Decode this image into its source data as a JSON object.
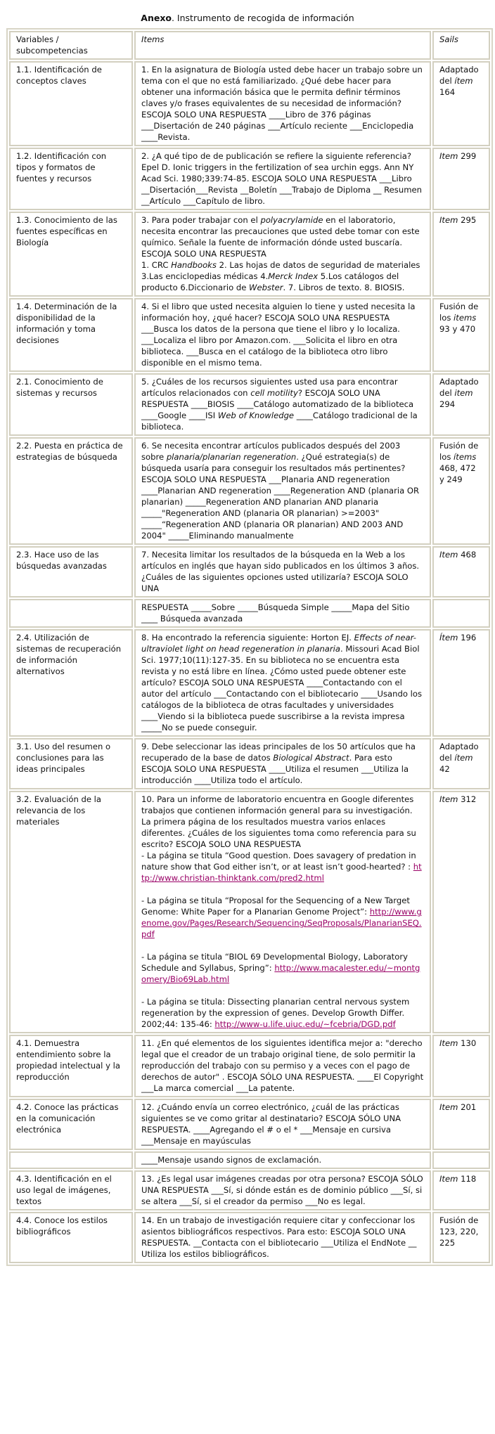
{
  "title": {
    "bold": "Anexo",
    "rest": ". Instrumento de recogida de información"
  },
  "header": {
    "variables": "Variables / subcompetencias",
    "items": "Items",
    "source": "Sails"
  },
  "link_color": "#990066",
  "rows": [
    {
      "variable": "1.1. Identificación de conceptos claves",
      "item": [
        {
          "t": "1. En la asignatura de Biología usted debe hacer un trabajo sobre un tema con el que no está familiarizado. ¿Qué debe hacer para obtener una información básica que le permita definir términos claves y/o frases equivalentes de su necesidad de información? ESCOJA SOLO UNA RESPUESTA ____Libro de 376 páginas ___Disertación de 240 páginas  ___Artículo reciente ___Enciclopedia ____Revista."
        }
      ],
      "source": [
        {
          "t": "Adaptado del "
        },
        {
          "i": "ítem"
        },
        {
          "t": " 164"
        }
      ]
    },
    {
      "variable": "1.2.  Identificación con tipos y formatos de fuentes y recursos",
      "item": [
        {
          "t": "2.  ¿A qué tipo de de publicación se refiere la siguiente referencia? Epel D. Ionic triggers in the fertilization of sea urchin eggs. Ann NY Acad Sci. 1980;339:74-85. ESCOJA SOLO UNA RESPUESTA ___Libro __Disertación___Revista __Boletín ___Trabajo de Diploma  __ Resumen  __Artículo ___Capítulo de libro."
        }
      ],
      "source": [
        {
          "i": "Item"
        },
        {
          "t": " 299"
        }
      ]
    },
    {
      "variable": "1.3.  Conocimiento de las fuentes específicas en Biología",
      "item": [
        {
          "t": "3. Para poder trabajar con el "
        },
        {
          "i": "polyacrylamide"
        },
        {
          "t": "  en el laboratorio,  necesita encontrar las precauciones que usted debe tomar con este químico. Señale la fuente de información dónde usted buscaría. ESCOJA SOLO UNA RESPUESTA"
        },
        {
          "br": 1
        },
        {
          "t": "1. CRC  "
        },
        {
          "i": "Handbooks"
        },
        {
          "t": "  2. Las hojas de datos de seguridad de materiales 3.Las enciclopedias médicas 4."
        },
        {
          "i": "Merck Index"
        },
        {
          "t": "  5.Los catálogos del producto 6.Diccionario de "
        },
        {
          "i": "Webster"
        },
        {
          "t": ". 7. Libros de texto. 8. BIOSIS."
        }
      ],
      "source": [
        {
          "i": "Item"
        },
        {
          "t": " 295"
        }
      ]
    },
    {
      "variable": "1.4.  Determinación de la disponibilidad de la información y toma decisiones",
      "item": [
        {
          "t": "4. Si el libro que usted necesita alguien lo tiene y usted necesita la información hoy, ¿qué hacer?  ESCOJA SOLO UNA RESPUESTA ___Busca los datos de la persona que tiene el libro y lo localiza. ___Localiza el libro por Amazon.com.   ___Solicita el libro en otra biblioteca. ___Busca en el catálogo de la biblioteca otro libro disponible en el mismo tema."
        }
      ],
      "source": [
        {
          "t": "Fusión de los "
        },
        {
          "i": "items"
        },
        {
          "t": " 93 y 470"
        }
      ]
    },
    {
      "variable": "2.1.  Conocimiento de sistemas y recursos",
      "item": [
        {
          "t": "5. ¿Cuáles de los recursos siguientes usted usa para encontrar artículos relacionados con "
        },
        {
          "i": "cell motility"
        },
        {
          "t": "? ESCOJA SOLO UNA RESPUESTA ____BIOSIS ____Catálogo automatizado de la biblioteca ____Google ____ISI "
        },
        {
          "i": "Web of Knowledge"
        },
        {
          "t": " ____Catálogo tradicional de la biblioteca."
        }
      ],
      "source": [
        {
          "t": "Adaptado del "
        },
        {
          "i": "item"
        },
        {
          "t": " 294"
        }
      ]
    },
    {
      "variable": "2.2.  Puesta en práctica de estrategias de búsqueda",
      "item": [
        {
          "t": "6. Se necesita encontrar artículos publicados después del 2003 sobre "
        },
        {
          "i": "planaria/planarian regeneration"
        },
        {
          "t": ".  ¿Qué estrategia(s) de  búsqueda usaría para conseguir los resultados más pertinentes? ESCOJA SOLO UNA RESPUESTA  ___Planaria AND regeneration ____Planarian AND regeneration ____Regeneration AND (planaria OR planarian) _____Regeneration AND planarian AND planaria _____\"Regeneration AND (planaria OR planarian) >=2003\"  _____“Regeneration AND (planaria OR planarian) AND 2003 AND 2004\" _____Eliminando manualmente"
        }
      ],
      "source": [
        {
          "t": "Fusión de los "
        },
        {
          "i": "ítems"
        },
        {
          "t": " 468, 472 y 249"
        }
      ]
    },
    {
      "variable": "2.3.  Hace uso de las búsquedas avanzadas",
      "item": [
        {
          "t": "7. Necesita limitar los resultados de la búsqueda en la Web a los artículos en inglés que hayan sido publicados en los últimos 3 años. ¿Cuáles de las siguientes opciones usted utilizaría? ESCOJA SOLO UNA"
        }
      ],
      "source": [
        {
          "i": "Item"
        },
        {
          "t": " 468"
        }
      ]
    },
    {
      "variable": "",
      "item": [
        {
          "t": "RESPUESTA _____Sobre _____Búsqueda Simple _____Mapa del Sitio  ____ Búsqueda avanzada"
        }
      ],
      "source": []
    },
    {
      "variable": "2.4.  Utilización de sistemas de recuperación de información alternativos",
      "item": [
        {
          "t": "8. Ha encontrado la referencia siguiente: Horton EJ. "
        },
        {
          "i": "Effects of near-ultraviolet light on head regeneration in planaria"
        },
        {
          "t": ". Missouri Acad Biol Sci. 1977;10(11):127-35. En su biblioteca no se encuentra esta revista y no está libre en línea. ¿Cómo usted puede obtener este artículo? ESCOJA SOLO UNA RESPUESTA ____Contactando con el autor del artículo   ___Contactando con el bibliotecario ____Usando los catálogos de la biblioteca de otras facultades y universidades ____Viendo si la biblioteca puede suscribirse a la revista impresa _____No se puede conseguir."
        }
      ],
      "source": [
        {
          "i": "Ítem"
        },
        {
          "t": " 196"
        }
      ]
    },
    {
      "variable": "3.1.  Uso del resumen o conclusiones para las ideas principales",
      "item": [
        {
          "t": "9. Debe seleccionar las ideas principales de los 50 artículos que ha recuperado de la base de datos "
        },
        {
          "i": "Biological Abstract"
        },
        {
          "t": ". Para esto ESCOJA SOLO UNA RESPUESTA ____Utiliza el resumen ___Utiliza la introducción ____Utiliza todo el artículo."
        }
      ],
      "source": [
        {
          "t": "Adaptado del "
        },
        {
          "i": "ítem"
        },
        {
          "t": " 42"
        }
      ]
    },
    {
      "variable": "3.2.  Evaluación de la relevancia de los materiales",
      "item": [
        {
          "t": "10. Para un informe de laboratorio encuentra en Google diferentes trabajos que contienen información general para su investigación. La primera página de los resultados muestra varios enlaces diferentes.  ¿Cuáles de los siguientes toma como referencia para su escrito? ESCOJA SOLO UNA RESPUESTA"
        },
        {
          "br": 1
        },
        {
          "t": "- La página se titula “Good question. Does  savagery of predation in nature show that God either isn’t, or at least isn’t good-hearted? : "
        },
        {
          "a": "http://www.christian-thinktank.com/pred2.html"
        },
        {
          "br": 1
        },
        {
          "br": 1
        },
        {
          "t": "- La página se titula “Proposal for the Sequencing of a New Target Genome: White Paper for a Planarian Genome Project”: "
        },
        {
          "a": "http://www.genome.gov/Pages/Research/Sequencing/SeqProposals/PlanarianSEQ.pdf"
        },
        {
          "br": 1
        },
        {
          "br": 1
        },
        {
          "t": "- La página se titula “BIOL 69 Developmental Biology, Laboratory Schedule and Syllabus, Spring”: "
        },
        {
          "a": "http://www.macalester.edu/~montgomery/Bio69Lab.html"
        },
        {
          "br": 1
        },
        {
          "br": 1
        },
        {
          "t": "- La página se titula: Dissecting planarian central nervous system regeneration by the expression of genes. Develop Growth Differ. 2002;44: 135-46: "
        },
        {
          "a": "http://www-u.life.uiuc.edu/~fcebria/DGD.pdf"
        }
      ],
      "source": [
        {
          "i": "Item"
        },
        {
          "t": " 312"
        }
      ]
    },
    {
      "variable": "4.1.  Demuestra entendimiento sobre la propiedad intelectual y la reproducción",
      "item": [
        {
          "t": " 11. ¿En qué elementos de los siguientes identifica mejor a: \"derecho legal que el creador de un trabajo original tiene, de solo permitir la reproducción del trabajo con su permiso y a veces con el pago de derechos de autor\" . ESCOJA SÓLO UNA RESPUESTA. ____El Copyright  ___La marca comercial  ___La patente."
        }
      ],
      "source": [
        {
          "i": "Item"
        },
        {
          "t": " 130"
        }
      ]
    },
    {
      "variable": "4.2.  Conoce las prácticas en la comunicación electrónica",
      "item": [
        {
          "t": "12. ¿Cuándo envía un correo electrónico, ¿cuál de las prácticas siguientes se ve como gritar al destinatario? ESCOJA SÓLO UNA RESPUESTA. ____Agregando el # o el * ___Mensaje en cursiva   ___Mensaje en mayúsculas"
        }
      ],
      "source": [
        {
          "i": "Item"
        },
        {
          "t": " 201"
        }
      ]
    },
    {
      "variable": "",
      "item": [
        {
          "t": "____Mensaje usando signos de exclamación."
        }
      ],
      "source": []
    },
    {
      "variable": "4.3.  Identificación en el uso legal de imágenes, textos",
      "item": [
        {
          "t": "13. ¿Es legal usar imágenes creadas por otra persona? ESCOJA SÓLO UNA RESPUESTA  ___Sí, si dónde están es de dominio público ___Sí, si se altera  ___Sí, si el creador da permiso  ___No es legal."
        }
      ],
      "source": [
        {
          "i": "Item"
        },
        {
          "t": " 118"
        }
      ]
    },
    {
      "variable": "4.4.  Conoce los estilos bibliográficos",
      "item": [
        {
          "t": "14. En un trabajo de investigación requiere citar y confeccionar los asientos bibliográficos respectivos. Para esto: ESCOJA SOLO UNA RESPUESTA. __Contacta con el bibliotecario  ___Utiliza el EndNote __ Utiliza los estilos bibliográficos."
        }
      ],
      "source": [
        {
          "t": "Fusión de 123, 220, 225"
        }
      ]
    }
  ]
}
